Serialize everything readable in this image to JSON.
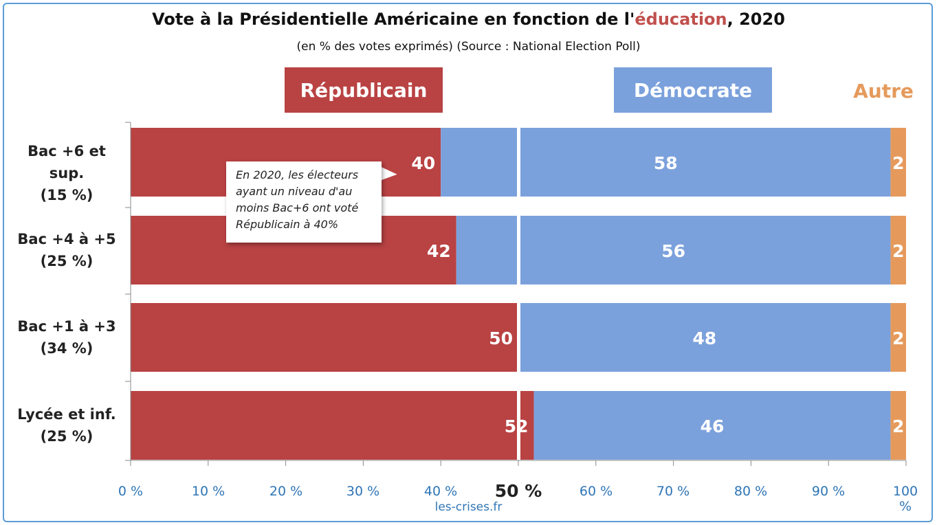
{
  "title_pre": "Vote à la Présidentielle Américaine en fonction de l'",
  "title_hl": "éducation",
  "title_post": ", 2020",
  "subtitle": "(en % des votes exprimés) (Source : National Election Poll)",
  "legend": {
    "republicain": "Républicain",
    "democrate": "Démocrate",
    "autre": "Autre"
  },
  "colors": {
    "republicain": "#b94243",
    "democrate": "#7ba1dc",
    "autre": "#e59a5c"
  },
  "annotation": [
    "En 2020, les électeurs",
    "ayant un niveau d'au",
    "moins Bac+6 ont voté",
    "Républicain à 40%"
  ],
  "source_text": "les-crises.fr",
  "chart_data": {
    "type": "bar",
    "orientation": "horizontal",
    "stacked": true,
    "categories": [
      {
        "line1": "Bac +6 et sup.",
        "line2": "(15 %)"
      },
      {
        "line1": "Bac +4 à +5",
        "line2": "(25 %)"
      },
      {
        "line1": "Bac +1 à +3",
        "line2": "(34 %)"
      },
      {
        "line1": "Lycée et inf.",
        "line2": "(25 %)"
      }
    ],
    "series": [
      {
        "name": "Républicain",
        "values": [
          40,
          42,
          50,
          52
        ]
      },
      {
        "name": "Démocrate",
        "values": [
          58,
          56,
          48,
          46
        ]
      },
      {
        "name": "Autre",
        "values": [
          2,
          2,
          2,
          2
        ]
      }
    ],
    "xlim": [
      0,
      100
    ],
    "xticks": [
      "0 %",
      "10 %",
      "20 %",
      "30 %",
      "40 %",
      "50 %",
      "60 %",
      "70 %",
      "80 %",
      "90 %",
      "100 %"
    ],
    "midline": 50,
    "grid": false
  }
}
